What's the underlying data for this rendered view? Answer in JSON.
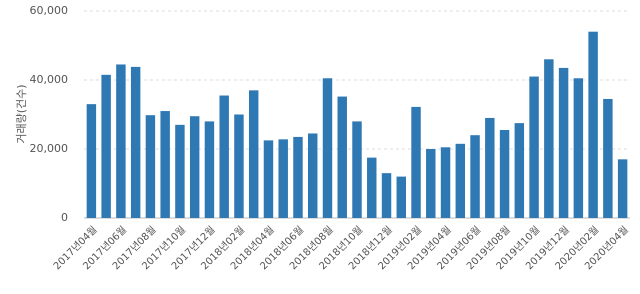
{
  "chart_data": {
    "type": "bar",
    "y_label": "거래량(건수)",
    "categories": [
      "2017년04월",
      null,
      "2017년06월",
      null,
      "2017년08월",
      null,
      "2017년10월",
      null,
      "2017년12월",
      null,
      "2018년02월",
      null,
      "2018년04월",
      null,
      "2018년06월",
      null,
      "2018년08월",
      null,
      "2018년10월",
      null,
      "2018년12월",
      null,
      "2019년02월",
      null,
      "2019년04월",
      null,
      "2019년06월",
      null,
      "2019년08월",
      null,
      "2019년10월",
      null,
      "2019년12월",
      null,
      "2020년02월",
      null,
      "2020년04월"
    ],
    "values": [
      33000,
      41500,
      44500,
      43800,
      29800,
      31000,
      27000,
      29500,
      28000,
      35500,
      30000,
      37000,
      22500,
      22800,
      23500,
      24500,
      40500,
      35200,
      28000,
      17500,
      13000,
      12000,
      32200,
      20000,
      20500,
      21500,
      24000,
      29000,
      25500,
      27500,
      41000,
      46000,
      43500,
      40500,
      54000,
      34500,
      17000
    ],
    "color": "#2e78b4",
    "ylim": [
      0,
      60000
    ],
    "yticks": [
      0,
      {
        "value": 20000,
        "label": "20,000"
      },
      {
        "value": 40000,
        "label": "40,000"
      },
      {
        "value": 60000,
        "label": "60,000"
      }
    ],
    "grid": true
  }
}
